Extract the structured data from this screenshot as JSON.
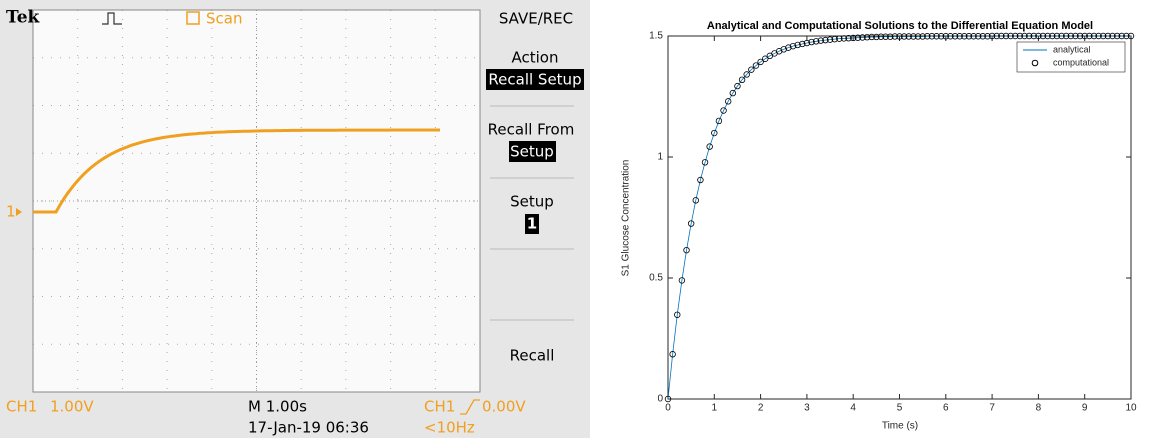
{
  "oscilloscope": {
    "brand": "Tek",
    "acquisition": "Scan",
    "menu_title": "SAVE/REC",
    "menu": [
      {
        "label": "Action",
        "value": "Recall Setup"
      },
      {
        "label": "Recall From",
        "value": "Setup"
      },
      {
        "label": "Setup",
        "value": "1"
      },
      {
        "label": "Recall"
      }
    ],
    "channel_marker": "1",
    "status": {
      "channel": "CH1",
      "volts_per_div": "1.00V",
      "timebase": "M 1.00s",
      "trigger_channel": "CH1",
      "trigger_level": "0.00V",
      "date_time": "17-Jan-19 06:36",
      "frequency": "<10Hz"
    }
  },
  "chart_data": {
    "type": "line",
    "title": "Analytical and Computational Solutions to the Differential Equation Model",
    "x_label": "Time (s)",
    "y_label": "S1 Glucose Concentration",
    "x": [
      0,
      0.1,
      0.2,
      0.3,
      0.4,
      0.5,
      0.6,
      0.7,
      0.8,
      0.9,
      1,
      1.1,
      1.2,
      1.3,
      1.4,
      1.5,
      1.6,
      1.7,
      1.8,
      1.9,
      2,
      2.1,
      2.2,
      2.3,
      2.4,
      2.5,
      2.6,
      2.7,
      2.8,
      2.9,
      3,
      3.1,
      3.2,
      3.3,
      3.4,
      3.5,
      3.6,
      3.7,
      3.8,
      3.9,
      4,
      4.1,
      4.2,
      4.3,
      4.4,
      4.5,
      4.6,
      4.7,
      4.8,
      4.9,
      5,
      5.1,
      5.2,
      5.3,
      5.4,
      5.5,
      5.6,
      5.7,
      5.8,
      5.9,
      6,
      6.1,
      6.2,
      6.3,
      6.4,
      6.5,
      6.6,
      6.7,
      6.8,
      6.9,
      7,
      7.1,
      7.2,
      7.3,
      7.4,
      7.5,
      7.6,
      7.7,
      7.8,
      7.9,
      8,
      8.1,
      8.2,
      8.3,
      8.4,
      8.5,
      8.6,
      8.7,
      8.8,
      8.9,
      9,
      9.1,
      9.2,
      9.3,
      9.4,
      9.5,
      9.6,
      9.7,
      9.8,
      9.9,
      10
    ],
    "series": [
      {
        "name": "analytical",
        "color": "#0072bd",
        "style": "line",
        "values": [
          0,
          0.185,
          0.348,
          0.49,
          0.615,
          0.725,
          0.821,
          0.905,
          0.978,
          1.043,
          1.099,
          1.149,
          1.192,
          1.23,
          1.264,
          1.293,
          1.319,
          1.341,
          1.361,
          1.378,
          1.393,
          1.406,
          1.418,
          1.428,
          1.437,
          1.445,
          1.452,
          1.458,
          1.463,
          1.467,
          1.471,
          1.475,
          1.478,
          1.481,
          1.483,
          1.485,
          1.487,
          1.489,
          1.49,
          1.491,
          1.492,
          1.493,
          1.494,
          1.495,
          1.496,
          1.496,
          1.497,
          1.497,
          1.497,
          1.498,
          1.498,
          1.498,
          1.498,
          1.498,
          1.498,
          1.498,
          1.499,
          1.499,
          1.499,
          1.499,
          1.499,
          1.499,
          1.499,
          1.499,
          1.499,
          1.499,
          1.499,
          1.499,
          1.499,
          1.499,
          1.5,
          1.5,
          1.5,
          1.5,
          1.5,
          1.5,
          1.5,
          1.5,
          1.5,
          1.5,
          1.5,
          1.5,
          1.5,
          1.5,
          1.5,
          1.5,
          1.5,
          1.5,
          1.5,
          1.5,
          1.5,
          1.5,
          1.5,
          1.5,
          1.5,
          1.5,
          1.5,
          1.5,
          1.5,
          1.5,
          1.5
        ]
      },
      {
        "name": "computational",
        "color": "#000000",
        "style": "markers",
        "values": [
          0,
          0.185,
          0.348,
          0.49,
          0.615,
          0.725,
          0.821,
          0.905,
          0.978,
          1.043,
          1.099,
          1.149,
          1.192,
          1.23,
          1.264,
          1.293,
          1.319,
          1.341,
          1.361,
          1.378,
          1.393,
          1.406,
          1.418,
          1.428,
          1.437,
          1.445,
          1.452,
          1.458,
          1.463,
          1.467,
          1.471,
          1.475,
          1.478,
          1.481,
          1.483,
          1.485,
          1.487,
          1.489,
          1.49,
          1.491,
          1.492,
          1.493,
          1.494,
          1.495,
          1.496,
          1.496,
          1.497,
          1.497,
          1.497,
          1.498,
          1.498,
          1.498,
          1.498,
          1.498,
          1.498,
          1.498,
          1.499,
          1.499,
          1.499,
          1.499,
          1.499,
          1.499,
          1.499,
          1.499,
          1.499,
          1.499,
          1.499,
          1.499,
          1.499,
          1.499,
          1.5,
          1.5,
          1.5,
          1.5,
          1.5,
          1.5,
          1.5,
          1.5,
          1.5,
          1.5,
          1.5,
          1.5,
          1.5,
          1.5,
          1.5,
          1.5,
          1.5,
          1.5,
          1.5,
          1.5,
          1.5,
          1.5,
          1.5,
          1.5,
          1.5,
          1.5,
          1.5,
          1.5,
          1.5,
          1.5,
          1.5
        ]
      }
    ],
    "xlim": [
      0,
      10
    ],
    "xticks": [
      0,
      1,
      2,
      3,
      4,
      5,
      6,
      7,
      8,
      9,
      10
    ],
    "ylim": [
      0,
      1.5
    ],
    "yticks": [
      0,
      0.5,
      1,
      1.5
    ],
    "legend": "top-right"
  }
}
